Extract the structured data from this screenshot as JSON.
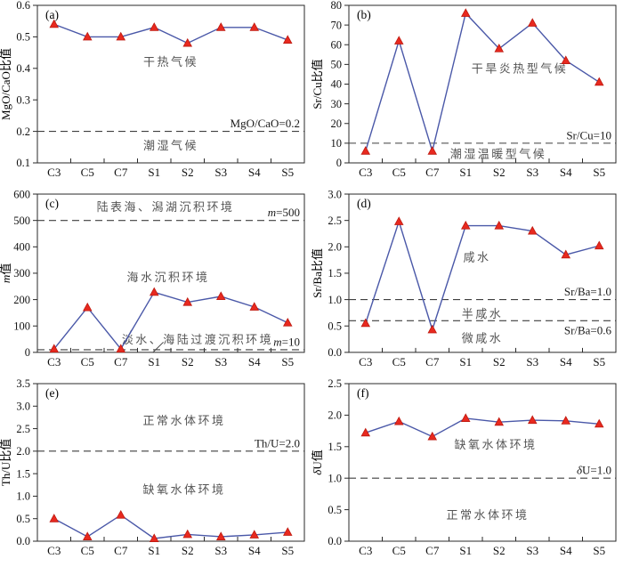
{
  "figure": {
    "background": "#ffffff",
    "panels": [
      "a",
      "b",
      "c",
      "d",
      "e",
      "f"
    ]
  },
  "colors": {
    "line": "#4a58a8",
    "marker": "#e8291f",
    "marker_edge": "#bd1a10",
    "dash": "#3f3f3f",
    "frame": "#2a2a2a",
    "axis_text": "#111111",
    "annotation": "#555555",
    "threshold_text": "#1a1a1a"
  },
  "chart_data": [
    {
      "id": "a",
      "type": "line",
      "panel_label": "(a)",
      "categories": [
        "C3",
        "C5",
        "C7",
        "S1",
        "S2",
        "S3",
        "S4",
        "S5"
      ],
      "values": [
        0.54,
        0.5,
        0.5,
        0.53,
        0.48,
        0.53,
        0.53,
        0.49
      ],
      "ylabel_segments": [
        {
          "t": "MgO/CaO比值"
        }
      ],
      "ylim": [
        0.1,
        0.6
      ],
      "ytick_step": 0.1,
      "ydecimals": 1,
      "grid": false,
      "thresholds": [
        {
          "value": 0.2,
          "segments": [
            {
              "t": "MgO/CaO=0.2"
            }
          ],
          "label_side": "above"
        }
      ],
      "annotations": [
        {
          "text": "干热气候",
          "xf": 0.5,
          "value": 0.42
        },
        {
          "text": "潮湿气候",
          "xf": 0.5,
          "value": 0.155
        }
      ]
    },
    {
      "id": "b",
      "type": "line",
      "panel_label": "(b)",
      "categories": [
        "C3",
        "C5",
        "C7",
        "S1",
        "S2",
        "S3",
        "S4",
        "S5"
      ],
      "values": [
        6,
        62,
        6,
        76,
        58,
        71,
        52,
        41
      ],
      "ylabel_segments": [
        {
          "t": "Sr/Cu比值"
        }
      ],
      "ylim": [
        0,
        80
      ],
      "ytick_step": 10,
      "ydecimals": 0,
      "grid": false,
      "thresholds": [
        {
          "value": 10,
          "segments": [
            {
              "t": "Sr/Cu=10"
            }
          ],
          "label_side": "above"
        }
      ],
      "annotations": [
        {
          "text": "干旱炎热型气候",
          "xf": 0.64,
          "value": 48
        },
        {
          "text": "潮湿温暖型气候",
          "xf": 0.56,
          "value": 4.5
        }
      ]
    },
    {
      "id": "c",
      "type": "line",
      "panel_label": "(c)",
      "categories": [
        "C3",
        "C5",
        "C7",
        "S1",
        "S2",
        "S3",
        "S4",
        "S5"
      ],
      "values": [
        13,
        170,
        13,
        228,
        190,
        212,
        172,
        112
      ],
      "ylabel_segments": [
        {
          "t": "m",
          "i": true
        },
        {
          "t": "值"
        }
      ],
      "ylim": [
        0,
        600
      ],
      "ytick_step": 100,
      "ydecimals": 0,
      "grid": false,
      "thresholds": [
        {
          "value": 500,
          "segments": [
            {
              "t": "m",
              "i": true
            },
            {
              "t": "=500"
            }
          ],
          "label_side": "above"
        },
        {
          "value": 10,
          "segments": [
            {
              "t": "m",
              "i": true
            },
            {
              "t": "=10"
            }
          ],
          "label_side": "above"
        }
      ],
      "annotations": [
        {
          "text": "陆表海、潟湖沉积环境",
          "xf": 0.48,
          "value": 552
        },
        {
          "text": "海水沉积环境",
          "xf": 0.49,
          "value": 285
        },
        {
          "text": "淡水、海陆过渡沉积环境",
          "xf": 0.6,
          "value": 48
        }
      ],
      "leader_lines": [
        {
          "x1f": 0.327,
          "y1f": 0.944,
          "x2f": 0.352,
          "y2f": 0.86
        },
        {
          "x1f": 0.433,
          "y1f": 1.0,
          "x2f": 0.472,
          "y2f": 0.935
        }
      ]
    },
    {
      "id": "d",
      "type": "line",
      "panel_label": "(d)",
      "categories": [
        "C3",
        "C5",
        "C7",
        "S1",
        "S2",
        "S3",
        "S4",
        "S5"
      ],
      "values": [
        0.55,
        2.48,
        0.43,
        2.4,
        2.4,
        2.3,
        1.85,
        2.02
      ],
      "ylabel_segments": [
        {
          "t": "Sr/Ba比值"
        }
      ],
      "ylim": [
        0.0,
        3.0
      ],
      "ytick_step": 0.5,
      "ydecimals": 1,
      "grid": false,
      "thresholds": [
        {
          "value": 1.0,
          "segments": [
            {
              "t": "Sr/Ba=1.0"
            }
          ],
          "label_side": "above"
        },
        {
          "value": 0.6,
          "segments": [
            {
              "t": "Sr/Ba=0.6"
            }
          ],
          "label_side": "below"
        }
      ],
      "annotations": [
        {
          "text": "咸水",
          "xf": 0.48,
          "value": 1.8
        },
        {
          "text": "半咸水",
          "xf": 0.5,
          "value": 0.73
        },
        {
          "text": "微咸水",
          "xf": 0.5,
          "value": 0.27
        }
      ]
    },
    {
      "id": "e",
      "type": "line",
      "panel_label": "(e)",
      "categories": [
        "C3",
        "C5",
        "C7",
        "S1",
        "S2",
        "S3",
        "S4",
        "S5"
      ],
      "values": [
        0.5,
        0.1,
        0.58,
        0.06,
        0.15,
        0.1,
        0.14,
        0.2
      ],
      "ylabel_segments": [
        {
          "t": "Th/U比值"
        }
      ],
      "ylim": [
        0.0,
        3.5
      ],
      "ytick_step": 0.5,
      "ydecimals": 1,
      "grid": false,
      "thresholds": [
        {
          "value": 2.0,
          "segments": [
            {
              "t": "Th/U=2.0"
            }
          ],
          "label_side": "above"
        }
      ],
      "annotations": [
        {
          "text": "正常水体环境",
          "xf": 0.55,
          "value": 2.68
        },
        {
          "text": "缺氧水体环境",
          "xf": 0.55,
          "value": 1.15
        }
      ]
    },
    {
      "id": "f",
      "type": "line",
      "panel_label": "(f)",
      "categories": [
        "C3",
        "C5",
        "C7",
        "S1",
        "S2",
        "S3",
        "S4",
        "S5"
      ],
      "values": [
        1.72,
        1.9,
        1.66,
        1.95,
        1.89,
        1.92,
        1.91,
        1.86
      ],
      "ylabel_segments": [
        {
          "t": "δ",
          "i": true
        },
        {
          "t": "U值"
        }
      ],
      "ylim": [
        0.0,
        2.5
      ],
      "ytick_step": 0.5,
      "ydecimals": 1,
      "grid": false,
      "thresholds": [
        {
          "value": 1.0,
          "segments": [
            {
              "t": "δ",
              "i": true
            },
            {
              "t": "U=1.0"
            }
          ],
          "label_side": "above"
        }
      ],
      "annotations": [
        {
          "text": "缺氧水体环境",
          "xf": 0.55,
          "value": 1.53
        },
        {
          "text": "正常水体环境",
          "xf": 0.52,
          "value": 0.42
        }
      ]
    }
  ]
}
